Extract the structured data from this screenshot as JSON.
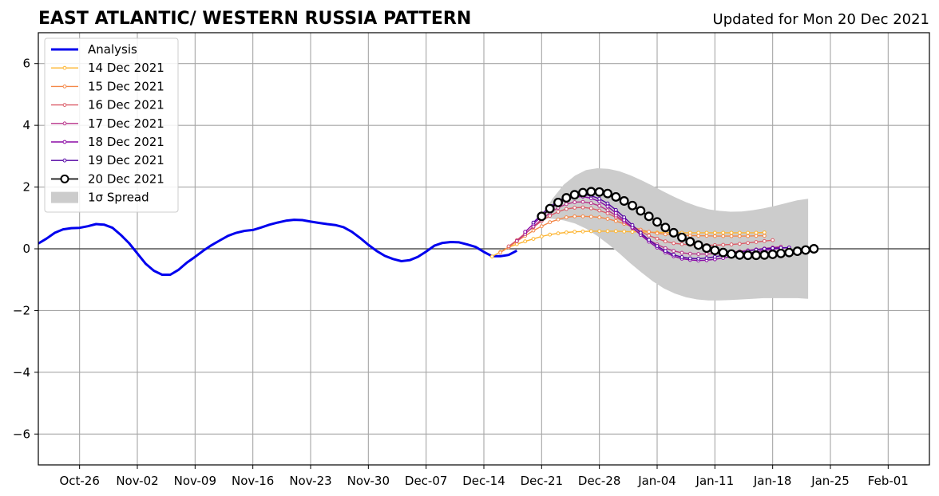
{
  "chart_data": {
    "type": "line",
    "title": "EAST ATLANTIC/ WESTERN RUSSIA PATTERN",
    "subtitle": "Updated for Mon 20 Dec 2021",
    "xlabel": "",
    "ylabel": "",
    "x_axis": {
      "type": "date",
      "range": [
        "2021-10-21",
        "2022-02-06"
      ],
      "tick_dates": [
        "2021-10-26",
        "2021-11-02",
        "2021-11-09",
        "2021-11-16",
        "2021-11-23",
        "2021-11-30",
        "2021-12-07",
        "2021-12-14",
        "2021-12-21",
        "2021-12-28",
        "2022-01-04",
        "2022-01-11",
        "2022-01-18",
        "2022-01-25",
        "2022-02-01"
      ],
      "tick_labels": [
        "Oct-26",
        "Nov-02",
        "Nov-09",
        "Nov-16",
        "Nov-23",
        "Nov-30",
        "Dec-07",
        "Dec-14",
        "Dec-21",
        "Dec-28",
        "Jan-04",
        "Jan-11",
        "Jan-18",
        "Jan-25",
        "Feb-01"
      ]
    },
    "y_axis": {
      "range": [
        -7,
        7
      ],
      "ticks": [
        -6,
        -4,
        -2,
        0,
        2,
        4,
        6
      ],
      "tick_labels": [
        "−6",
        "−4",
        "−2",
        "0",
        "2",
        "4",
        "6"
      ]
    },
    "grid": true,
    "legend_position": "top-left",
    "series": [
      {
        "name": "Analysis",
        "color": "#0000ee",
        "style": "thick-line",
        "start_date": "2021-10-21",
        "values": [
          0.17,
          0.33,
          0.52,
          0.63,
          0.67,
          0.68,
          0.73,
          0.8,
          0.78,
          0.68,
          0.45,
          0.18,
          -0.15,
          -0.48,
          -0.71,
          -0.84,
          -0.84,
          -0.68,
          -0.45,
          -0.26,
          -0.06,
          0.12,
          0.27,
          0.42,
          0.52,
          0.58,
          0.61,
          0.69,
          0.78,
          0.85,
          0.91,
          0.94,
          0.93,
          0.88,
          0.84,
          0.8,
          0.77,
          0.7,
          0.55,
          0.35,
          0.13,
          -0.07,
          -0.23,
          -0.33,
          -0.4,
          -0.37,
          -0.26,
          -0.09,
          0.1,
          0.19,
          0.22,
          0.21,
          0.14,
          0.06,
          -0.1,
          -0.24,
          -0.24,
          -0.2,
          -0.06
        ]
      },
      {
        "name": "14 Dec 2021",
        "color": "#fdb42f",
        "style": "small-markers",
        "start_date": "2021-12-15",
        "values": [
          -0.25,
          -0.1,
          0.05,
          0.15,
          0.24,
          0.32,
          0.4,
          0.46,
          0.5,
          0.53,
          0.55,
          0.56,
          0.57,
          0.57,
          0.57,
          0.57,
          0.56,
          0.55,
          0.55,
          0.54,
          0.53,
          0.53,
          0.52,
          0.52,
          0.52,
          0.52,
          0.52,
          0.52,
          0.52,
          0.52,
          0.52,
          0.52,
          0.52,
          0.53
        ]
      },
      {
        "name": "15 Dec 2021",
        "color": "#f48849",
        "style": "small-markers",
        "start_date": "2021-12-16",
        "values": [
          -0.12,
          0.05,
          0.24,
          0.42,
          0.59,
          0.73,
          0.86,
          0.95,
          1.02,
          1.05,
          1.05,
          1.04,
          1.02,
          0.97,
          0.9,
          0.81,
          0.71,
          0.62,
          0.55,
          0.5,
          0.47,
          0.45,
          0.44,
          0.43,
          0.42,
          0.42,
          0.41,
          0.41,
          0.41,
          0.41,
          0.41,
          0.42,
          0.42
        ]
      },
      {
        "name": "16 Dec 2021",
        "color": "#db5c68",
        "style": "small-markers",
        "start_date": "2021-12-17",
        "values": [
          0.08,
          0.28,
          0.5,
          0.7,
          0.9,
          1.07,
          1.2,
          1.29,
          1.33,
          1.34,
          1.31,
          1.24,
          1.15,
          1.02,
          0.87,
          0.71,
          0.56,
          0.43,
          0.33,
          0.24,
          0.18,
          0.15,
          0.13,
          0.12,
          0.12,
          0.12,
          0.13,
          0.14,
          0.16,
          0.19,
          0.22,
          0.25,
          0.28
        ]
      },
      {
        "name": "17 Dec 2021",
        "color": "#b83289",
        "style": "small-markers",
        "start_date": "2021-12-18",
        "values": [
          0.25,
          0.48,
          0.72,
          0.95,
          1.16,
          1.33,
          1.45,
          1.51,
          1.52,
          1.48,
          1.39,
          1.25,
          1.08,
          0.88,
          0.67,
          0.47,
          0.29,
          0.14,
          0.02,
          -0.07,
          -0.13,
          -0.16,
          -0.17,
          -0.17,
          -0.16,
          -0.14,
          -0.11,
          -0.08,
          -0.05,
          -0.02,
          0.01,
          0.04,
          0.07
        ]
      },
      {
        "name": "18 Dec 2021",
        "color": "#8b0aa5",
        "style": "small-markers",
        "start_date": "2021-12-19",
        "values": [
          0.55,
          0.8,
          1.05,
          1.28,
          1.47,
          1.61,
          1.68,
          1.69,
          1.64,
          1.53,
          1.37,
          1.16,
          0.93,
          0.69,
          0.45,
          0.23,
          0.04,
          -0.12,
          -0.24,
          -0.32,
          -0.36,
          -0.38,
          -0.37,
          -0.34,
          -0.3,
          -0.25,
          -0.2,
          -0.15,
          -0.1,
          -0.05,
          -0.01,
          0.02,
          0.04
        ]
      },
      {
        "name": "19 Dec 2021",
        "color": "#5302a3",
        "style": "small-markers",
        "start_date": "2021-12-20",
        "values": [
          0.85,
          1.12,
          1.36,
          1.55,
          1.68,
          1.75,
          1.76,
          1.72,
          1.62,
          1.47,
          1.26,
          1.02,
          0.77,
          0.52,
          0.29,
          0.09,
          -0.07,
          -0.19,
          -0.27,
          -0.31,
          -0.32,
          -0.3,
          -0.26,
          -0.21,
          -0.16,
          -0.11,
          -0.07,
          -0.03,
          0.0,
          0.02,
          0.03,
          0.04
        ]
      },
      {
        "name": "20 Dec 2021",
        "color": "#000000",
        "style": "big-markers",
        "start_date": "2021-12-21",
        "values": [
          1.05,
          1.3,
          1.5,
          1.65,
          1.75,
          1.82,
          1.85,
          1.84,
          1.79,
          1.68,
          1.55,
          1.4,
          1.23,
          1.05,
          0.87,
          0.69,
          0.52,
          0.37,
          0.23,
          0.12,
          0.02,
          -0.05,
          -0.12,
          -0.17,
          -0.2,
          -0.21,
          -0.21,
          -0.2,
          -0.18,
          -0.15,
          -0.12,
          -0.08,
          -0.04,
          0.0
        ]
      }
    ],
    "spread": {
      "name": "1σ Spread",
      "color": "#cccccc",
      "start_date": "2021-12-21",
      "upper": [
        1.1,
        1.63,
        2.08,
        2.37,
        2.55,
        2.61,
        2.59,
        2.51,
        2.38,
        2.22,
        2.04,
        1.85,
        1.67,
        1.51,
        1.38,
        1.28,
        1.23,
        1.2,
        1.21,
        1.25,
        1.31,
        1.39,
        1.48,
        1.57,
        1.62
      ],
      "lower": [
        1.0,
        0.97,
        0.92,
        0.82,
        0.65,
        0.42,
        0.15,
        -0.15,
        -0.47,
        -0.77,
        -1.05,
        -1.28,
        -1.45,
        -1.57,
        -1.64,
        -1.67,
        -1.67,
        -1.66,
        -1.64,
        -1.62,
        -1.6,
        -1.6,
        -1.6,
        -1.6,
        -1.62
      ]
    },
    "legend_entries": [
      "Analysis",
      "14 Dec 2021",
      "15 Dec 2021",
      "16 Dec 2021",
      "17 Dec 2021",
      "18 Dec 2021",
      "19 Dec 2021",
      "20 Dec 2021",
      "1σ Spread"
    ]
  }
}
